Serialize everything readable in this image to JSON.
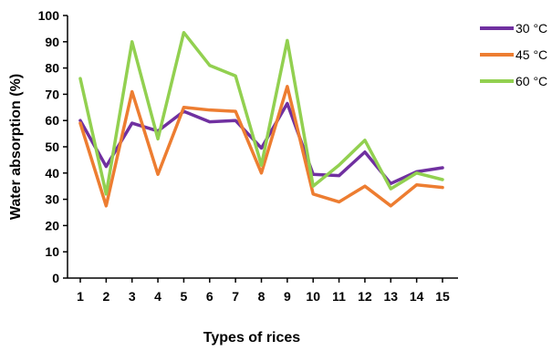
{
  "chart_data": {
    "type": "line",
    "xlabel": "Types of rices",
    "ylabel": "Water absorption (%)",
    "ylim": [
      0,
      100
    ],
    "yticks": [
      0,
      10,
      20,
      30,
      40,
      50,
      60,
      70,
      80,
      90,
      100
    ],
    "categories": [
      "1",
      "2",
      "3",
      "4",
      "5",
      "6",
      "7",
      "8",
      "9",
      "10",
      "11",
      "12",
      "13",
      "14",
      "15"
    ],
    "grid": false,
    "legend_position": "top-right",
    "series": [
      {
        "name": "30 °C",
        "color": "#7030A0",
        "values": [
          60,
          42.5,
          59,
          56,
          63.5,
          59.5,
          60,
          49.5,
          66.5,
          39.5,
          39,
          48,
          36,
          40.5,
          42
        ]
      },
      {
        "name": "45 °C",
        "color": "#ED7D31",
        "values": [
          59,
          27.5,
          71,
          39.5,
          65,
          64,
          63.5,
          40,
          73,
          32,
          29,
          35,
          27.5,
          35.5,
          34.5
        ]
      },
      {
        "name": "60 °C",
        "color": "#92D050",
        "values": [
          76,
          32,
          90,
          53,
          93.5,
          81,
          77,
          43,
          90.5,
          35,
          43,
          52.5,
          34,
          40,
          37.5
        ]
      }
    ]
  }
}
